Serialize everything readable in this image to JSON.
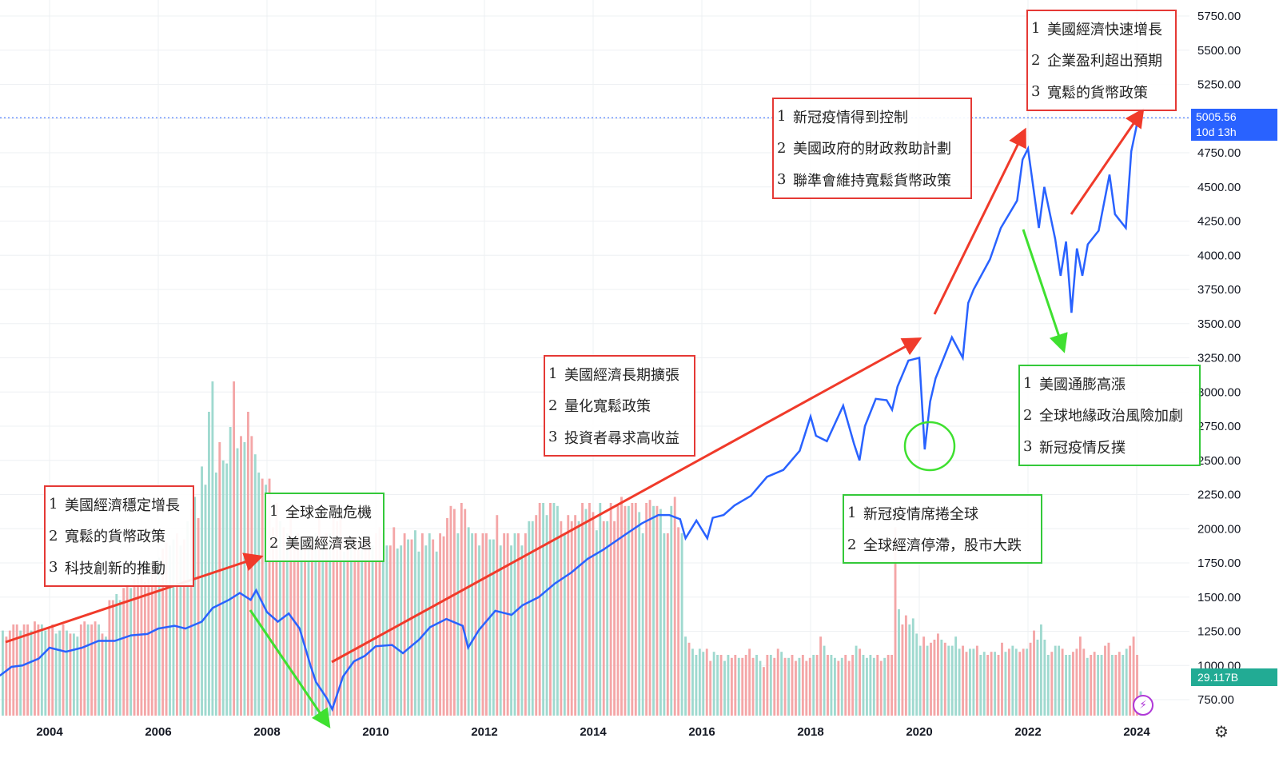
{
  "chart_data": {
    "type": "line",
    "symbol_last_price": "5005.56",
    "countdown": "10d 13h",
    "volume_last": "29.117B",
    "x_ticks": [
      "2004",
      "2006",
      "2008",
      "2010",
      "2012",
      "2014",
      "2016",
      "2018",
      "2020",
      "2022",
      "2024"
    ],
    "y_ticks": [
      "5750.00",
      "5500.00",
      "5250.00",
      "5000.00",
      "4750.00",
      "4500.00",
      "4250.00",
      "4000.00",
      "3750.00",
      "3500.00",
      "3250.00",
      "3000.00",
      "2750.00",
      "2500.00",
      "2250.00",
      "2000.00",
      "1750.00",
      "1500.00",
      "1250.00",
      "1000.00",
      "750.00"
    ],
    "ylim": [
      650,
      5800
    ],
    "xlim": [
      2002.9,
      2024.9
    ],
    "series": [
      {
        "color": "#2962ff",
        "x": [
          2002.9,
          2003.1,
          2003.3,
          2003.5,
          2003.8,
          2004.0,
          2004.3,
          2004.6,
          2004.9,
          2005.2,
          2005.5,
          2005.8,
          2006.0,
          2006.3,
          2006.5,
          2006.8,
          2007.0,
          2007.3,
          2007.5,
          2007.7,
          2007.8,
          2008.0,
          2008.2,
          2008.4,
          2008.6,
          2008.8,
          2008.9,
          2009.0,
          2009.1,
          2009.2,
          2009.4,
          2009.6,
          2009.8,
          2010.0,
          2010.3,
          2010.5,
          2010.8,
          2011.0,
          2011.3,
          2011.6,
          2011.7,
          2011.9,
          2012.2,
          2012.5,
          2012.7,
          2013.0,
          2013.3,
          2013.6,
          2013.9,
          2014.2,
          2014.6,
          2014.9,
          2015.2,
          2015.4,
          2015.6,
          2015.7,
          2015.9,
          2016.1,
          2016.2,
          2016.4,
          2016.6,
          2016.9,
          2017.2,
          2017.5,
          2017.8,
          2018.0,
          2018.1,
          2018.3,
          2018.6,
          2018.8,
          2018.9,
          2019.0,
          2019.2,
          2019.4,
          2019.5,
          2019.6,
          2019.8,
          2020.0,
          2020.1,
          2020.2,
          2020.3,
          2020.6,
          2020.8,
          2020.9,
          2021.0,
          2021.3,
          2021.5,
          2021.8,
          2021.9,
          2022.0,
          2022.2,
          2022.3,
          2022.5,
          2022.6,
          2022.7,
          2022.8,
          2022.9,
          2023.0,
          2023.1,
          2023.3,
          2023.5,
          2023.6,
          2023.8,
          2023.9,
          2024.0,
          2024.1
        ],
        "y": [
          880,
          930,
          990,
          1000,
          1050,
          1130,
          1100,
          1130,
          1180,
          1180,
          1220,
          1230,
          1270,
          1290,
          1270,
          1320,
          1420,
          1480,
          1530,
          1480,
          1550,
          1390,
          1320,
          1380,
          1270,
          1000,
          880,
          820,
          760,
          680,
          920,
          1030,
          1070,
          1140,
          1150,
          1090,
          1190,
          1280,
          1340,
          1290,
          1130,
          1260,
          1400,
          1370,
          1440,
          1500,
          1600,
          1680,
          1780,
          1850,
          1960,
          2040,
          2100,
          2100,
          2070,
          1930,
          2060,
          1930,
          2080,
          2100,
          2170,
          2240,
          2380,
          2430,
          2570,
          2820,
          2680,
          2640,
          2900,
          2620,
          2500,
          2750,
          2950,
          2940,
          2870,
          3040,
          3230,
          3250,
          2580,
          2930,
          3100,
          3400,
          3250,
          3650,
          3750,
          3970,
          4200,
          4400,
          4700,
          4780,
          4200,
          4500,
          4120,
          3850,
          4100,
          3580,
          4050,
          3850,
          4080,
          4180,
          4590,
          4300,
          4200,
          4760,
          4950,
          5006
        ]
      }
    ],
    "volume": {
      "values": [
        280,
        260,
        280,
        300,
        300,
        280,
        300,
        300,
        280,
        310,
        300,
        300,
        280,
        290,
        300,
        270,
        280,
        300,
        280,
        270,
        270,
        260,
        300,
        310,
        300,
        300,
        310,
        300,
        270,
        260,
        380,
        380,
        400,
        380,
        420,
        430,
        420,
        450,
        460,
        470,
        440,
        450,
        500,
        500,
        520,
        550,
        570,
        560,
        580,
        600,
        560,
        580,
        640,
        680,
        720,
        650,
        820,
        760,
        1000,
        1100,
        800,
        900,
        840,
        830,
        950,
        1100,
        880,
        920,
        900,
        1000,
        920,
        860,
        800,
        780,
        760,
        780,
        620,
        700,
        640,
        620,
        600,
        680,
        560,
        600,
        580,
        560,
        560,
        580,
        600,
        650,
        560,
        600,
        600,
        660,
        640,
        660,
        540,
        580,
        560,
        590,
        570,
        560,
        580,
        560,
        560,
        600,
        620,
        600,
        560,
        560,
        620,
        550,
        560,
        600,
        580,
        580,
        610,
        540,
        600,
        560,
        600,
        580,
        540,
        600,
        590,
        650,
        690,
        680,
        600,
        700,
        680,
        620,
        600,
        600,
        560,
        600,
        600,
        580,
        580,
        660,
        560,
        600,
        600,
        560,
        600,
        600,
        560,
        600,
        640,
        640,
        660,
        700,
        700,
        660,
        700,
        700,
        690,
        640,
        600,
        660,
        640,
        660,
        640,
        700,
        680,
        700,
        670,
        610,
        700,
        640,
        640,
        700,
        640,
        690,
        720,
        690,
        690,
        700,
        700,
        670,
        600,
        700,
        710,
        690,
        690,
        680,
        600,
        600,
        690,
        720,
        620,
        600,
        260,
        240,
        220,
        200,
        220,
        210,
        220,
        180,
        210,
        200,
        200,
        180,
        200,
        190,
        200,
        190,
        190,
        200,
        220,
        190,
        200,
        180,
        160,
        200,
        200,
        190,
        220,
        210,
        190,
        190,
        200,
        180,
        190,
        200,
        180,
        190,
        200,
        200,
        260,
        230,
        200,
        200,
        190,
        180,
        190,
        200,
        180,
        200,
        230,
        220,
        200,
        190,
        200,
        190,
        200,
        180,
        190,
        200,
        200,
        620,
        350,
        300,
        330,
        300,
        320,
        270,
        230,
        260,
        230,
        240,
        250,
        270,
        250,
        240,
        230,
        230,
        260,
        220,
        230,
        210,
        220,
        220,
        230,
        200,
        210,
        200,
        210,
        210,
        200,
        240,
        210,
        220,
        230,
        220,
        210,
        220,
        220,
        240,
        280,
        250,
        300,
        250,
        200,
        210,
        230,
        230,
        220,
        200,
        200,
        210,
        220,
        260,
        220,
        190,
        200,
        210,
        200,
        200,
        230,
        240,
        200,
        200,
        210,
        200,
        220,
        230,
        260,
        200,
        80
      ],
      "up_color": "#9fd9cf",
      "down_color": "#f4a6a7"
    }
  },
  "annotations": [
    {
      "color": "red",
      "lines": [
        {
          "n": "1",
          "t": "美國經濟快速增長"
        },
        {
          "n": "2",
          "t": "企業盈利超出預期"
        },
        {
          "n": "3",
          "t": "寬鬆的貨幣政策"
        }
      ]
    },
    {
      "color": "red",
      "lines": [
        {
          "n": "1",
          "t": "新冠疫情得到控制"
        },
        {
          "n": "2",
          "t": "美國政府的財政救助計劃"
        },
        {
          "n": "3",
          "t": "聯準會維持寬鬆貨幣政策"
        }
      ]
    },
    {
      "color": "red",
      "lines": [
        {
          "n": "1",
          "t": "美國經濟長期擴張"
        },
        {
          "n": "2",
          "t": "量化寬鬆政策"
        },
        {
          "n": "3",
          "t": "投資者尋求高收益"
        }
      ]
    },
    {
      "color": "red",
      "lines": [
        {
          "n": "1",
          "t": "美國經濟穩定增長"
        },
        {
          "n": "2",
          "t": "寬鬆的貨幣政策"
        },
        {
          "n": "3",
          "t": "科技創新的推動"
        }
      ]
    },
    {
      "color": "green",
      "lines": [
        {
          "n": "1",
          "t": "全球金融危機"
        },
        {
          "n": "2",
          "t": "美國經濟衰退"
        }
      ]
    },
    {
      "color": "green",
      "lines": [
        {
          "n": "1",
          "t": "新冠疫情席捲全球"
        },
        {
          "n": "2",
          "t": "全球經濟停滯，股市大跌"
        }
      ]
    },
    {
      "color": "green",
      "lines": [
        {
          "n": "1",
          "t": "美國通膨高漲"
        },
        {
          "n": "2",
          "t": "全球地緣政治風險加劇"
        },
        {
          "n": "3",
          "t": "新冠疫情反撲"
        }
      ]
    }
  ],
  "colors": {
    "line": "#2962ff",
    "red_arrow": "#f03a2a",
    "green_arrow": "#3fe030",
    "grid": "#eef0f3"
  },
  "icons": {
    "flash": "lightning-icon",
    "settings": "gear-icon"
  }
}
